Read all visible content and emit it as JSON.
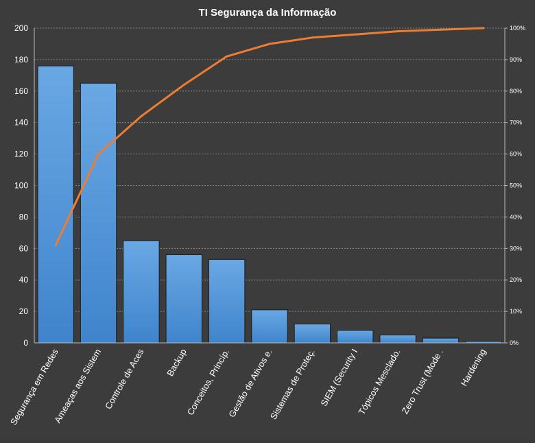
{
  "chart_data": {
    "type": "bar",
    "title": "TI Segurança da Informação",
    "xlabel": "",
    "ylabel": "",
    "categories": [
      "Segurança em Redes",
      "Ameaças aos Sistem",
      "Controle de Aces",
      "Backup",
      "Conceitos, Princíp.",
      "Gestão de Ativos e.",
      "Sistemas de Proteç.",
      "SIEM (Security I",
      "Tópicos Mesclado.",
      "Zero Trust (Mode .",
      "Hardening"
    ],
    "series": [
      {
        "type": "bar",
        "values": [
          176,
          165,
          65,
          56,
          53,
          21,
          12,
          8,
          5,
          3,
          1
        ]
      },
      {
        "type": "line",
        "axis": "secondary",
        "values": [
          31,
          60,
          72,
          82,
          91,
          95,
          97,
          98,
          99,
          99.5,
          100
        ]
      }
    ],
    "ylim": [
      0,
      200
    ],
    "yticks": [
      "0",
      "20",
      "40",
      "60",
      "80",
      "100",
      "120",
      "140",
      "160",
      "180",
      "200"
    ],
    "y2lim": [
      0,
      100
    ],
    "y2ticks": [
      "0%",
      "10%",
      "20%",
      "30%",
      "40%",
      "50%",
      "60%",
      "70%",
      "80%",
      "90%",
      "100%"
    ],
    "grid": true,
    "legend": "none",
    "colors": {
      "bar": "#4a90d9",
      "line": "#ed7d31",
      "background": "#3c3c3c"
    }
  }
}
